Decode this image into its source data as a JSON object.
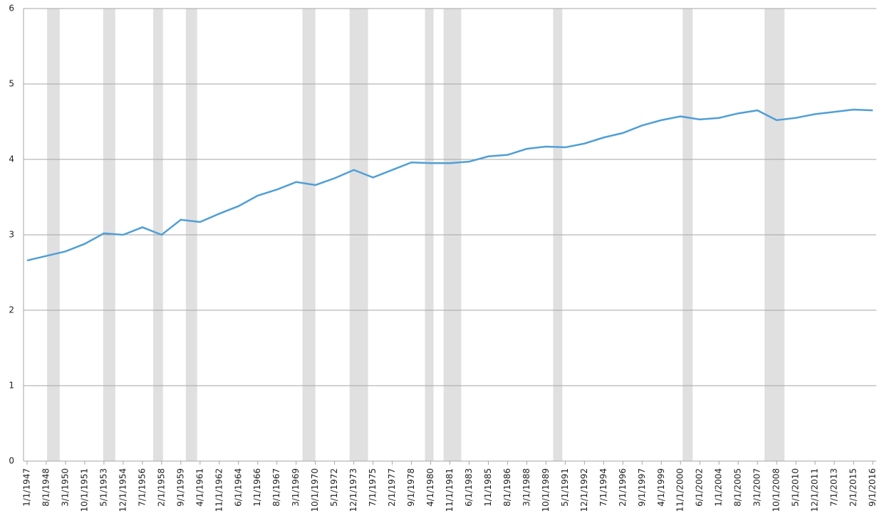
{
  "chart_data": {
    "type": "line",
    "categories": [
      "1/1/1947",
      "8/1/1948",
      "3/1/1950",
      "10/1/1951",
      "5/1/1953",
      "12/1/1954",
      "7/1/1956",
      "2/1/1958",
      "9/1/1959",
      "4/1/1961",
      "11/1/1962",
      "6/1/1964",
      "1/1/1966",
      "8/1/1967",
      "3/1/1969",
      "10/1/1970",
      "5/1/1972",
      "12/1/1973",
      "7/1/1975",
      "2/1/1977",
      "9/1/1978",
      "4/1/1980",
      "11/1/1981",
      "6/1/1983",
      "1/1/1985",
      "8/1/1986",
      "3/1/1988",
      "10/1/1989",
      "5/1/1991",
      "12/1/1992",
      "7/1/1994",
      "2/1/1996",
      "9/1/1997",
      "4/1/1999",
      "11/1/2000",
      "6/1/2002",
      "1/1/2004",
      "8/1/2005",
      "3/1/2007",
      "10/1/2008",
      "5/1/2010",
      "12/1/2011",
      "7/1/2013",
      "2/1/2015",
      "9/1/2016"
    ],
    "series": [
      {
        "color": "#4f9fd6",
        "values": [
          2.66,
          2.72,
          2.78,
          2.88,
          3.02,
          3.0,
          3.1,
          3.0,
          3.2,
          3.17,
          3.28,
          3.38,
          3.52,
          3.6,
          3.7,
          3.66,
          3.75,
          3.86,
          3.76,
          3.86,
          3.96,
          3.95,
          3.95,
          3.97,
          4.04,
          4.06,
          4.14,
          4.17,
          4.16,
          4.21,
          4.29,
          4.35,
          4.45,
          4.52,
          4.57,
          4.53,
          4.55,
          4.61,
          4.65,
          4.52,
          4.55,
          4.6,
          4.63,
          4.66,
          4.65
        ]
      }
    ],
    "shaded_ranges": [
      [
        1.04,
        1.7
      ],
      [
        3.96,
        4.59
      ],
      [
        6.56,
        7.07
      ],
      [
        8.26,
        8.85
      ],
      [
        14.33,
        15.0
      ],
      [
        16.78,
        17.74
      ],
      [
        20.7,
        21.15
      ],
      [
        21.67,
        22.59
      ],
      [
        27.37,
        27.85
      ],
      [
        34.11,
        34.63
      ],
      [
        38.37,
        39.41
      ]
    ],
    "shaded_color": "#e0e0e0",
    "ylim": [
      0,
      6
    ],
    "yticks": [
      0,
      1,
      2,
      3,
      4,
      5,
      6
    ],
    "grid": true
  }
}
